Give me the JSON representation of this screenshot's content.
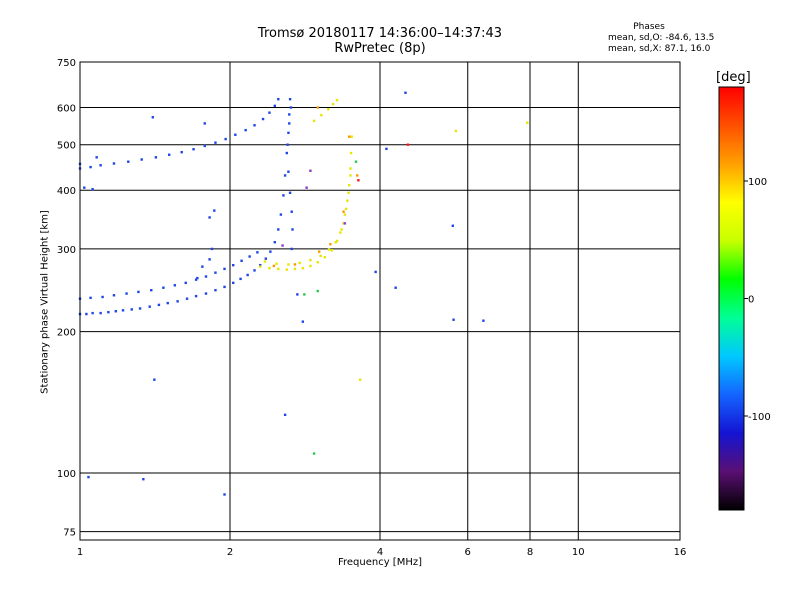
{
  "header": {
    "title": "Tromsø 20180117 14:36:00–14:37:43",
    "subtitle": "RwPretec (8p)"
  },
  "phases": {
    "title": "Phases",
    "line_o": "mean, sd,O: -84.6, 13.5",
    "line_x": "mean, sd,X: 87.1, 16.0"
  },
  "colorbar": {
    "label": "[deg]",
    "range": [
      -180,
      180
    ],
    "ticks": [
      {
        "value": 100,
        "label": "100"
      },
      {
        "value": 0,
        "label": "0"
      },
      {
        "value": -100,
        "label": "-100"
      }
    ],
    "colors": [
      "#000000",
      "#5a0f73",
      "#1414d2",
      "#1464ff",
      "#00c8ff",
      "#00ff96",
      "#00ff00",
      "#c8ff00",
      "#ffff00",
      "#ffa000",
      "#ff5000",
      "#ff0000"
    ]
  },
  "chart_data": {
    "type": "scatter",
    "x_scale": "log",
    "y_scale": "log",
    "xlabel": "Frequency [MHz]",
    "ylabel": "Stationary phase Virtual Height [km]",
    "xlim": [
      1,
      16
    ],
    "ylim": [
      72,
      750
    ],
    "xticks": [
      {
        "value": 1,
        "label": "1"
      },
      {
        "value": 2,
        "label": "2"
      },
      {
        "value": 4,
        "label": "4"
      },
      {
        "value": 6,
        "label": "6"
      },
      {
        "value": 8,
        "label": "8"
      },
      {
        "value": 10,
        "label": "10"
      },
      {
        "value": 16,
        "label": "16"
      }
    ],
    "yticks": [
      {
        "value": 75,
        "label": "75"
      },
      {
        "value": 100,
        "label": "100"
      },
      {
        "value": 200,
        "label": "200"
      },
      {
        "value": 300,
        "label": "300"
      },
      {
        "value": 400,
        "label": "400"
      },
      {
        "value": 500,
        "label": "500"
      },
      {
        "value": 600,
        "label": "600"
      },
      {
        "value": 750,
        "label": "750"
      }
    ],
    "grid": true,
    "series": [
      {
        "color": "#1e46e6",
        "points": [
          [
            1.0,
            218
          ],
          [
            1.03,
            218
          ],
          [
            1.06,
            219
          ],
          [
            1.1,
            219
          ],
          [
            1.14,
            220
          ],
          [
            1.18,
            221
          ],
          [
            1.22,
            222
          ],
          [
            1.27,
            223
          ],
          [
            1.32,
            224
          ],
          [
            1.38,
            226
          ],
          [
            1.44,
            228
          ],
          [
            1.5,
            230
          ],
          [
            1.57,
            232
          ],
          [
            1.64,
            235
          ],
          [
            1.71,
            238
          ],
          [
            1.79,
            241
          ],
          [
            1.87,
            245
          ],
          [
            1.95,
            249
          ],
          [
            2.03,
            254
          ],
          [
            2.1,
            259
          ],
          [
            2.17,
            264
          ],
          [
            2.24,
            270
          ],
          [
            2.3,
            277
          ],
          [
            2.36,
            286
          ],
          [
            2.41,
            296
          ],
          [
            2.46,
            310
          ],
          [
            2.5,
            330
          ],
          [
            2.53,
            355
          ],
          [
            2.56,
            390
          ],
          [
            2.58,
            430
          ],
          [
            2.6,
            480
          ],
          [
            2.62,
            530
          ],
          [
            2.63,
            580
          ],
          [
            2.64,
            625
          ],
          [
            1.0,
            235
          ],
          [
            1.05,
            236
          ],
          [
            1.11,
            237
          ],
          [
            1.17,
            239
          ],
          [
            1.24,
            241
          ],
          [
            1.31,
            243
          ],
          [
            1.39,
            245
          ],
          [
            1.47,
            248
          ],
          [
            1.55,
            251
          ],
          [
            1.63,
            254
          ],
          [
            1.71,
            258
          ],
          [
            1.79,
            262
          ],
          [
            1.87,
            267
          ],
          [
            1.95,
            272
          ],
          [
            2.03,
            277
          ],
          [
            2.11,
            283
          ],
          [
            2.19,
            289
          ],
          [
            2.27,
            295
          ],
          [
            1.0,
            445
          ],
          [
            1.05,
            448
          ],
          [
            1.1,
            452
          ],
          [
            1.17,
            456
          ],
          [
            1.25,
            460
          ],
          [
            1.33,
            465
          ],
          [
            1.42,
            470
          ],
          [
            1.51,
            476
          ],
          [
            1.6,
            482
          ],
          [
            1.69,
            489
          ],
          [
            1.78,
            497
          ],
          [
            1.87,
            505
          ],
          [
            1.96,
            514
          ],
          [
            2.05,
            525
          ],
          [
            2.15,
            537
          ],
          [
            2.24,
            550
          ],
          [
            2.33,
            567
          ],
          [
            2.4,
            585
          ],
          [
            2.46,
            605
          ],
          [
            2.5,
            625
          ],
          [
            1.78,
            555
          ],
          [
            1.82,
            350
          ],
          [
            1.86,
            362
          ],
          [
            1.0,
            455
          ],
          [
            1.02,
            405
          ],
          [
            1.06,
            402
          ],
          [
            1.08,
            470
          ],
          [
            1.72,
            260
          ],
          [
            1.76,
            275
          ],
          [
            1.82,
            285
          ],
          [
            1.84,
            300
          ],
          [
            1.4,
            572
          ],
          [
            1.04,
            98
          ],
          [
            1.34,
            97
          ],
          [
            1.41,
            158
          ],
          [
            1.95,
            90
          ],
          [
            2.58,
            133
          ],
          [
            2.73,
            240
          ],
          [
            2.8,
            210
          ],
          [
            2.62,
            438
          ],
          [
            2.64,
            395
          ],
          [
            2.66,
            360
          ],
          [
            2.67,
            330
          ],
          [
            2.66,
            300
          ],
          [
            2.61,
            500
          ],
          [
            2.63,
            555
          ],
          [
            2.65,
            600
          ],
          [
            3.92,
            268
          ],
          [
            4.12,
            490
          ],
          [
            4.3,
            248
          ],
          [
            4.5,
            645
          ],
          [
            5.6,
            336
          ],
          [
            5.62,
            212
          ],
          [
            6.45,
            211
          ]
        ]
      },
      {
        "color": "#e6e600",
        "points": [
          [
            2.3,
            275
          ],
          [
            2.4,
            273
          ],
          [
            2.5,
            272
          ],
          [
            2.6,
            271
          ],
          [
            2.7,
            272
          ],
          [
            2.8,
            273
          ],
          [
            2.9,
            276
          ],
          [
            3.0,
            281
          ],
          [
            3.1,
            288
          ],
          [
            3.2,
            298
          ],
          [
            3.28,
            312
          ],
          [
            3.35,
            330
          ],
          [
            3.4,
            355
          ],
          [
            3.44,
            380
          ],
          [
            3.47,
            410
          ],
          [
            3.49,
            445
          ],
          [
            3.5,
            480
          ],
          [
            3.51,
            520
          ],
          [
            2.35,
            282
          ],
          [
            2.48,
            279
          ],
          [
            2.62,
            278
          ],
          [
            2.76,
            280
          ],
          [
            2.9,
            284
          ],
          [
            3.04,
            290
          ],
          [
            3.16,
            299
          ],
          [
            3.26,
            310
          ],
          [
            3.33,
            325
          ],
          [
            3.38,
            340
          ],
          [
            3.42,
            365
          ],
          [
            3.46,
            395
          ],
          [
            3.49,
            430
          ],
          [
            2.95,
            562
          ],
          [
            3.05,
            578
          ],
          [
            3.15,
            595
          ],
          [
            3.22,
            610
          ],
          [
            3.28,
            622
          ],
          [
            3.65,
            158
          ],
          [
            5.68,
            535
          ],
          [
            7.9,
            557
          ]
        ]
      },
      {
        "color": "#ff9600",
        "points": [
          [
            2.45,
            276
          ],
          [
            2.7,
            278
          ],
          [
            3.02,
            296
          ],
          [
            3.18,
            307
          ],
          [
            3.38,
            360
          ],
          [
            3.47,
            520
          ],
          [
            3.6,
            430
          ],
          [
            3.0,
            600
          ]
        ]
      },
      {
        "color": "#28c850",
        "points": [
          [
            2.82,
            240
          ],
          [
            3.0,
            244
          ],
          [
            2.95,
            110
          ],
          [
            3.58,
            460
          ]
        ]
      },
      {
        "color": "#8c3cc8",
        "points": [
          [
            2.85,
            405
          ],
          [
            2.55,
            305
          ],
          [
            3.4,
            340
          ],
          [
            2.9,
            440
          ]
        ]
      },
      {
        "color": "#ff1414",
        "points": [
          [
            4.55,
            500
          ],
          [
            3.62,
            420
          ]
        ]
      }
    ]
  }
}
